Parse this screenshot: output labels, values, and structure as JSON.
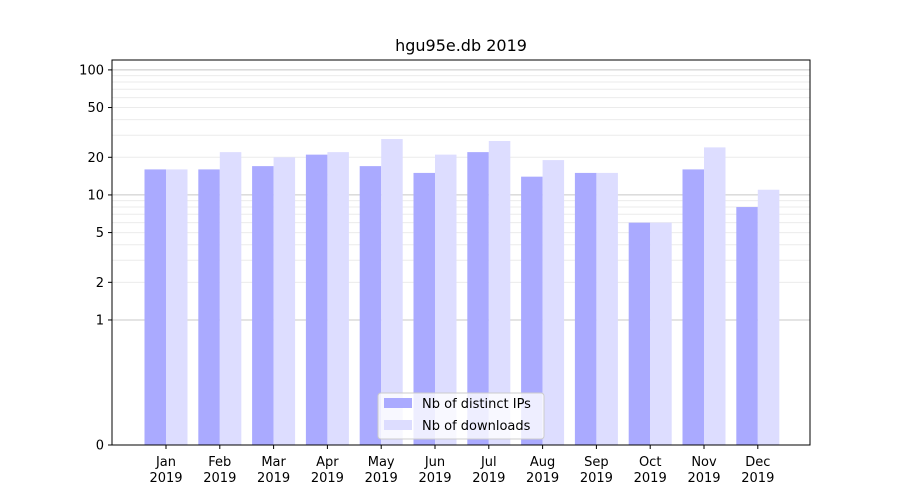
{
  "chart_data": {
    "type": "bar",
    "title": "hgu95e.db 2019",
    "xlabel": "",
    "ylabel": "",
    "y_scale": "symlog",
    "ylim": [
      0,
      120
    ],
    "y_ticks": [
      0,
      1,
      2,
      5,
      10,
      20,
      50,
      100
    ],
    "y_tick_labels": [
      "0",
      "1",
      "2",
      "5",
      "10",
      "20",
      "50",
      "100"
    ],
    "categories": [
      "Jan",
      "Feb",
      "Mar",
      "Apr",
      "May",
      "Jun",
      "Jul",
      "Aug",
      "Sep",
      "Oct",
      "Nov",
      "Dec"
    ],
    "category_year": "2019",
    "series": [
      {
        "name": "Nb of distinct IPs",
        "color": "#aaaaff",
        "values": [
          16,
          16,
          17,
          21,
          17,
          15,
          22,
          14,
          15,
          6,
          16,
          8
        ]
      },
      {
        "name": "Nb of downloads",
        "color": "#ddddff",
        "values": [
          16,
          22,
          20,
          22,
          28,
          21,
          27,
          19,
          15,
          6,
          24,
          11
        ]
      }
    ],
    "grid": true,
    "legend_position": "bottom-center"
  }
}
